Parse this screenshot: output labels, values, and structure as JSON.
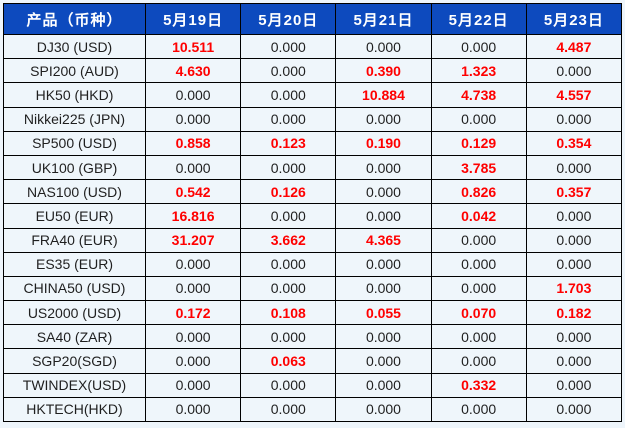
{
  "colors": {
    "header_bg": "#0d4abe",
    "header_text": "#ffffff",
    "cell_bg": "#eff6fb",
    "grid": "#000000",
    "value_text": "#1f1f1f",
    "highlight_text": "#ff0000"
  },
  "table": {
    "header": {
      "product_label": "产品（币种）",
      "dates": [
        "5月19日",
        "5月20日",
        "5月21日",
        "5月22日",
        "5月23日"
      ]
    },
    "rows": [
      {
        "product": "DJ30 (USD)",
        "values": [
          {
            "v": "10.511",
            "hl": true
          },
          {
            "v": "0.000",
            "hl": false
          },
          {
            "v": "0.000",
            "hl": false
          },
          {
            "v": "0.000",
            "hl": false
          },
          {
            "v": "4.487",
            "hl": true
          }
        ]
      },
      {
        "product": "SPI200 (AUD)",
        "values": [
          {
            "v": "4.630",
            "hl": true
          },
          {
            "v": "0.000",
            "hl": false
          },
          {
            "v": "0.390",
            "hl": true
          },
          {
            "v": "1.323",
            "hl": true
          },
          {
            "v": "0.000",
            "hl": false
          }
        ]
      },
      {
        "product": "HK50 (HKD)",
        "values": [
          {
            "v": "0.000",
            "hl": false
          },
          {
            "v": "0.000",
            "hl": false
          },
          {
            "v": "10.884",
            "hl": true
          },
          {
            "v": "4.738",
            "hl": true
          },
          {
            "v": "4.557",
            "hl": true
          }
        ]
      },
      {
        "product": "Nikkei225 (JPN)",
        "values": [
          {
            "v": "0.000",
            "hl": false
          },
          {
            "v": "0.000",
            "hl": false
          },
          {
            "v": "0.000",
            "hl": false
          },
          {
            "v": "0.000",
            "hl": false
          },
          {
            "v": "0.000",
            "hl": false
          }
        ]
      },
      {
        "product": "SP500 (USD)",
        "values": [
          {
            "v": "0.858",
            "hl": true
          },
          {
            "v": "0.123",
            "hl": true
          },
          {
            "v": "0.190",
            "hl": true
          },
          {
            "v": "0.129",
            "hl": true
          },
          {
            "v": "0.354",
            "hl": true
          }
        ]
      },
      {
        "product": "UK100 (GBP)",
        "values": [
          {
            "v": "0.000",
            "hl": false
          },
          {
            "v": "0.000",
            "hl": false
          },
          {
            "v": "0.000",
            "hl": false
          },
          {
            "v": "3.785",
            "hl": true
          },
          {
            "v": "0.000",
            "hl": false
          }
        ]
      },
      {
        "product": "NAS100 (USD)",
        "values": [
          {
            "v": "0.542",
            "hl": true
          },
          {
            "v": "0.126",
            "hl": true
          },
          {
            "v": "0.000",
            "hl": false
          },
          {
            "v": "0.826",
            "hl": true
          },
          {
            "v": "0.357",
            "hl": true
          }
        ]
      },
      {
        "product": "EU50 (EUR)",
        "values": [
          {
            "v": "16.816",
            "hl": true
          },
          {
            "v": "0.000",
            "hl": false
          },
          {
            "v": "0.000",
            "hl": false
          },
          {
            "v": "0.042",
            "hl": true
          },
          {
            "v": "0.000",
            "hl": false
          }
        ]
      },
      {
        "product": "FRA40 (EUR)",
        "values": [
          {
            "v": "31.207",
            "hl": true
          },
          {
            "v": "3.662",
            "hl": true
          },
          {
            "v": "4.365",
            "hl": true
          },
          {
            "v": "0.000",
            "hl": false
          },
          {
            "v": "0.000",
            "hl": false
          }
        ]
      },
      {
        "product": "ES35 (EUR)",
        "values": [
          {
            "v": "0.000",
            "hl": false
          },
          {
            "v": "0.000",
            "hl": false
          },
          {
            "v": "0.000",
            "hl": false
          },
          {
            "v": "0.000",
            "hl": false
          },
          {
            "v": "0.000",
            "hl": false
          }
        ]
      },
      {
        "product": "CHINA50 (USD)",
        "values": [
          {
            "v": "0.000",
            "hl": false
          },
          {
            "v": "0.000",
            "hl": false
          },
          {
            "v": "0.000",
            "hl": false
          },
          {
            "v": "0.000",
            "hl": false
          },
          {
            "v": "1.703",
            "hl": true
          }
        ]
      },
      {
        "product": "US2000 (USD)",
        "values": [
          {
            "v": "0.172",
            "hl": true
          },
          {
            "v": "0.108",
            "hl": true
          },
          {
            "v": "0.055",
            "hl": true
          },
          {
            "v": "0.070",
            "hl": true
          },
          {
            "v": "0.182",
            "hl": true
          }
        ]
      },
      {
        "product": "SA40 (ZAR)",
        "values": [
          {
            "v": "0.000",
            "hl": false
          },
          {
            "v": "0.000",
            "hl": false
          },
          {
            "v": "0.000",
            "hl": false
          },
          {
            "v": "0.000",
            "hl": false
          },
          {
            "v": "0.000",
            "hl": false
          }
        ]
      },
      {
        "product": "SGP20(SGD)",
        "values": [
          {
            "v": "0.000",
            "hl": false
          },
          {
            "v": "0.063",
            "hl": true
          },
          {
            "v": "0.000",
            "hl": false
          },
          {
            "v": "0.000",
            "hl": false
          },
          {
            "v": "0.000",
            "hl": false
          }
        ]
      },
      {
        "product": "TWINDEX(USD)",
        "values": [
          {
            "v": "0.000",
            "hl": false
          },
          {
            "v": "0.000",
            "hl": false
          },
          {
            "v": "0.000",
            "hl": false
          },
          {
            "v": "0.332",
            "hl": true
          },
          {
            "v": "0.000",
            "hl": false
          }
        ]
      },
      {
        "product": "HKTECH(HKD)",
        "values": [
          {
            "v": "0.000",
            "hl": false
          },
          {
            "v": "0.000",
            "hl": false
          },
          {
            "v": "0.000",
            "hl": false
          },
          {
            "v": "0.000",
            "hl": false
          },
          {
            "v": "0.000",
            "hl": false
          }
        ]
      }
    ]
  }
}
